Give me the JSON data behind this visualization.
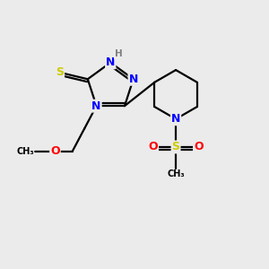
{
  "bg_color": "#ebebeb",
  "atom_colors": {
    "N": "#0000ff",
    "S": "#cccc00",
    "O": "#ff0000",
    "C": "#000000",
    "H": "#808080"
  },
  "bond_color": "#000000",
  "lw": 1.6
}
